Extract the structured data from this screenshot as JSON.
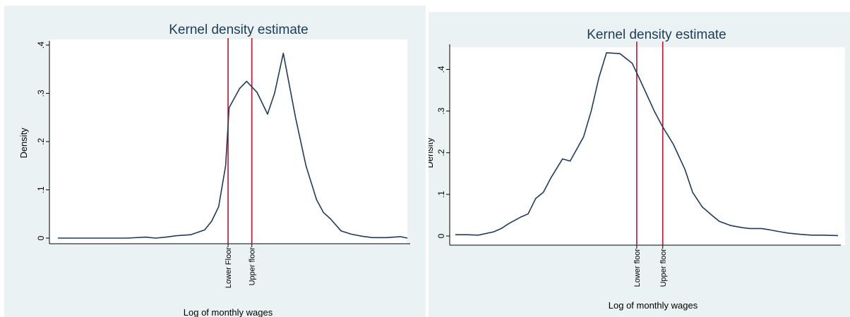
{
  "colors": {
    "background": "#eaf2f3",
    "plot_region": "#ffffff",
    "line": "#1f3b5a",
    "reference_line": "#c8102e"
  },
  "chart_data": [
    {
      "type": "line",
      "title": "Kernel density estimate",
      "xlabel": "Log of monthly wages",
      "ylabel": "Density",
      "ylim": [
        0,
        0.4
      ],
      "yticks": [
        "0",
        ".1",
        ".2",
        ".3",
        ".4"
      ],
      "grid": false,
      "legend": "none",
      "reference_lines": [
        {
          "label": "Lower Floor",
          "x": 0.487
        },
        {
          "label": "Upper floor",
          "x": 0.555
        }
      ],
      "series": [
        {
          "x": [
            0.0,
            0.05,
            0.1,
            0.15,
            0.2,
            0.25,
            0.28,
            0.31,
            0.34,
            0.38,
            0.42,
            0.44,
            0.46,
            0.48,
            0.49,
            0.52,
            0.54,
            0.57,
            0.6,
            0.62,
            0.645,
            0.68,
            0.71,
            0.74,
            0.76,
            0.78,
            0.81,
            0.84,
            0.87,
            0.9,
            0.94,
            0.98,
            1.0
          ],
          "y": [
            0.0,
            0.0,
            0.0,
            0.0,
            0.0,
            0.002,
            0.0,
            0.002,
            0.005,
            0.007,
            0.017,
            0.035,
            0.065,
            0.15,
            0.27,
            0.31,
            0.325,
            0.302,
            0.257,
            0.3,
            0.383,
            0.25,
            0.15,
            0.08,
            0.053,
            0.04,
            0.015,
            0.008,
            0.004,
            0.001,
            0.001,
            0.003,
            0.0
          ]
        }
      ]
    },
    {
      "type": "line",
      "title": "Kernel density estimate",
      "xlabel": "Log of monthly wages",
      "ylabel": "Density",
      "ylim": [
        0,
        0.45
      ],
      "yticks": [
        "0",
        ".1",
        ".2",
        ".3",
        ".4"
      ],
      "grid": false,
      "legend": "none",
      "reference_lines": [
        {
          "label": "Lower floor",
          "x": 0.474
        },
        {
          "label": "Upper floor",
          "x": 0.542
        }
      ],
      "series": [
        {
          "x": [
            0.0,
            0.03,
            0.06,
            0.1,
            0.12,
            0.14,
            0.17,
            0.19,
            0.21,
            0.23,
            0.25,
            0.26,
            0.28,
            0.3,
            0.32,
            0.335,
            0.355,
            0.375,
            0.395,
            0.43,
            0.462,
            0.48,
            0.5,
            0.52,
            0.54,
            0.57,
            0.6,
            0.62,
            0.645,
            0.67,
            0.69,
            0.72,
            0.75,
            0.77,
            0.8,
            0.82,
            0.85,
            0.87,
            0.9,
            0.93,
            0.96,
            1.0
          ],
          "y": [
            0.003,
            0.003,
            0.002,
            0.01,
            0.018,
            0.03,
            0.045,
            0.053,
            0.09,
            0.105,
            0.14,
            0.155,
            0.185,
            0.18,
            0.213,
            0.238,
            0.3,
            0.38,
            0.44,
            0.438,
            0.415,
            0.38,
            0.34,
            0.3,
            0.265,
            0.22,
            0.16,
            0.105,
            0.07,
            0.05,
            0.035,
            0.025,
            0.02,
            0.018,
            0.018,
            0.015,
            0.01,
            0.007,
            0.004,
            0.002,
            0.002,
            0.001
          ]
        }
      ]
    }
  ]
}
